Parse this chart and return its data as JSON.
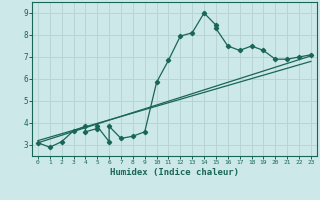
{
  "xlabel": "Humidex (Indice chaleur)",
  "bg_color": "#cce8e8",
  "grid_color": "#b8d4d4",
  "line_color": "#1a6655",
  "xlim": [
    -0.5,
    23.5
  ],
  "ylim": [
    2.5,
    9.5
  ],
  "xticks": [
    0,
    1,
    2,
    3,
    4,
    5,
    6,
    7,
    8,
    9,
    10,
    11,
    12,
    13,
    14,
    15,
    16,
    17,
    18,
    19,
    20,
    21,
    22,
    23
  ],
  "yticks": [
    3,
    4,
    5,
    6,
    7,
    8,
    9
  ],
  "series1_x": [
    0,
    1,
    2,
    3,
    4,
    4,
    5,
    5,
    6,
    6,
    7,
    8,
    9,
    10,
    11,
    12,
    13,
    14,
    15,
    15,
    16,
    17,
    18,
    19,
    20,
    21,
    22,
    23
  ],
  "series1_y": [
    3.1,
    2.9,
    3.15,
    3.65,
    3.85,
    3.6,
    3.75,
    3.85,
    3.15,
    3.85,
    3.3,
    3.4,
    3.6,
    5.85,
    6.85,
    7.95,
    8.1,
    9.0,
    8.45,
    8.3,
    7.5,
    7.3,
    7.5,
    7.3,
    6.9,
    6.9,
    7.0,
    7.1
  ],
  "trend1_x": [
    0,
    23
  ],
  "trend1_y": [
    3.1,
    7.05
  ],
  "trend2_x": [
    0,
    23
  ],
  "trend2_y": [
    3.2,
    6.8
  ]
}
